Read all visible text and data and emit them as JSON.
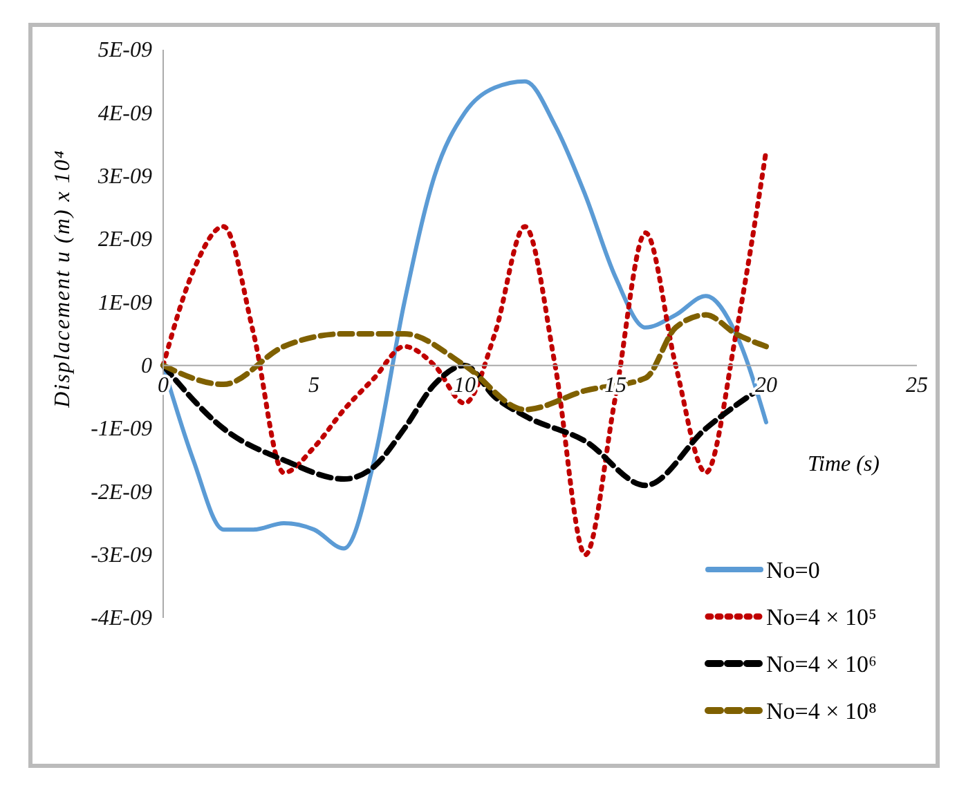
{
  "chart_data": {
    "type": "line",
    "xlabel": "Time (s)",
    "ylabel": "Displacement u (m)   x 10⁴",
    "xlim": [
      0,
      25
    ],
    "xticks": [
      0,
      5,
      10,
      15,
      20,
      25
    ],
    "ylim": [
      -4e-09,
      5e-09
    ],
    "yticks": [
      {
        "value": -4e-09,
        "label": "-4E-09"
      },
      {
        "value": -3e-09,
        "label": "-3E-09"
      },
      {
        "value": -2e-09,
        "label": "-2E-09"
      },
      {
        "value": -1e-09,
        "label": "-1E-09"
      },
      {
        "value": 0,
        "label": "0"
      },
      {
        "value": 1e-09,
        "label": "1E-09"
      },
      {
        "value": 2e-09,
        "label": "2E-09"
      },
      {
        "value": 3e-09,
        "label": "3E-09"
      },
      {
        "value": 4e-09,
        "label": "4E-09"
      },
      {
        "value": 5e-09,
        "label": "5E-09"
      }
    ],
    "legend": "bottom right",
    "series": [
      {
        "name": "No=0",
        "color": "#5b9bd5",
        "line_style": "solid",
        "x": [
          0,
          1,
          2,
          3,
          4,
          5,
          6,
          7,
          8,
          9,
          10,
          11,
          12,
          13,
          14,
          15,
          16,
          17,
          18,
          19,
          20
        ],
        "values": [
          0,
          -1.5e-09,
          -2.6e-09,
          -2.6e-09,
          -2.5e-09,
          -2.6e-09,
          -2.9e-09,
          -1.5e-09,
          1e-09,
          3e-09,
          4e-09,
          4.4e-09,
          4.5e-09,
          3.8e-09,
          2.7e-09,
          1.4e-09,
          6e-10,
          8e-10,
          1.1e-09,
          5e-10,
          -9e-10
        ]
      },
      {
        "name": "No=4 × 10⁵",
        "color": "#c00000",
        "line_style": "dotted",
        "x": [
          0,
          1,
          2,
          3,
          4,
          5,
          6,
          7,
          8,
          9,
          10,
          11,
          12,
          13,
          14,
          15,
          16,
          17,
          18,
          19,
          20
        ],
        "values": [
          0,
          1.5e-09,
          2.2e-09,
          5e-10,
          -1.7e-09,
          -1.3e-09,
          -7e-10,
          -2e-10,
          3e-10,
          0,
          -6e-10,
          5e-10,
          2.2e-09,
          0,
          -3e-09,
          -5e-10,
          2.1e-09,
          0,
          -1.7e-09,
          5e-10,
          3.4e-09
        ]
      },
      {
        "name": "No=4 × 10⁶",
        "color": "#000000",
        "line_style": "dashed",
        "x": [
          0,
          2,
          4,
          6,
          7,
          8,
          9,
          10,
          11,
          12,
          14,
          16,
          18,
          20
        ],
        "values": [
          0,
          -1e-09,
          -1.5e-09,
          -1.8e-09,
          -1.6e-09,
          -1e-09,
          -3e-10,
          0,
          -5e-10,
          -8e-10,
          -1.2e-09,
          -1.9e-09,
          -1e-09,
          -3e-10
        ]
      },
      {
        "name": "No=4 × 10⁸",
        "color": "#7f6000",
        "line_style": "dashed",
        "x": [
          0,
          2,
          4,
          6,
          8,
          10,
          12,
          14,
          16,
          17,
          18,
          19,
          20
        ],
        "values": [
          0,
          -3e-10,
          3e-10,
          5e-10,
          5e-10,
          0,
          -7e-10,
          -4e-10,
          -2e-10,
          6e-10,
          8e-10,
          5e-10,
          3e-10
        ]
      }
    ]
  }
}
